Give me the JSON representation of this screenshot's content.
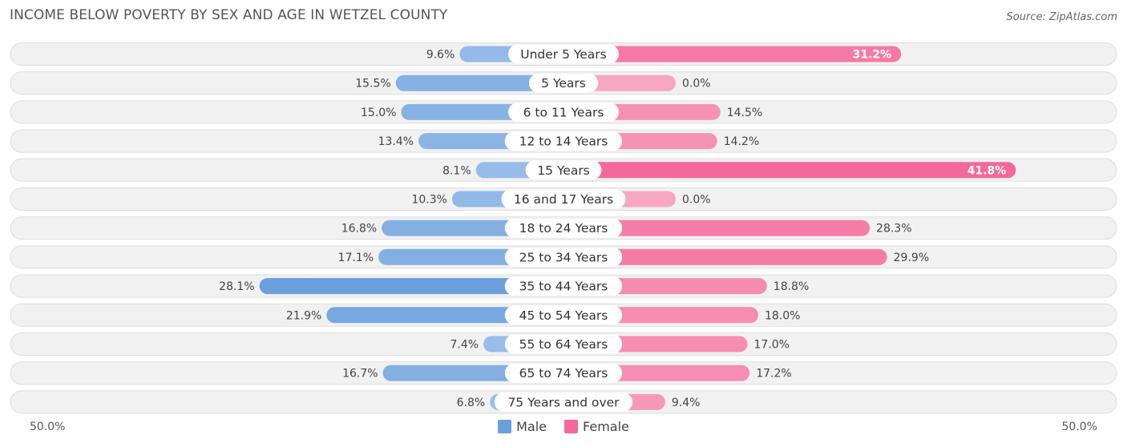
{
  "title": "INCOME BELOW POVERTY BY SEX AND AGE IN WETZEL COUNTY",
  "source": "Source: ZipAtlas.com",
  "colors": {
    "male_strong": "#6a9fdc",
    "male_light": "#a9c8ee",
    "female_strong": "#f4699a",
    "female_light": "#f7a7c2",
    "row_bg": "#f1f1f1",
    "row_border": "#dddddd"
  },
  "chart_data": {
    "type": "bar",
    "orientation": "horizontal-diverging",
    "title": "INCOME BELOW POVERTY BY SEX AND AGE IN WETZEL COUNTY",
    "axis_min_label": "50.0%",
    "axis_max_label": "50.0%",
    "xlim": [
      -50,
      50
    ],
    "categories": [
      "Under 5 Years",
      "5 Years",
      "6 to 11 Years",
      "12 to 14 Years",
      "15 Years",
      "16 and 17 Years",
      "18 to 24 Years",
      "25 to 34 Years",
      "35 to 44 Years",
      "45 to 54 Years",
      "55 to 64 Years",
      "65 to 74 Years",
      "75 Years and over"
    ],
    "series": [
      {
        "name": "Male",
        "values": [
          9.6,
          15.5,
          15.0,
          13.4,
          8.1,
          10.3,
          16.8,
          17.1,
          28.1,
          21.9,
          7.4,
          16.7,
          6.8
        ],
        "labels": [
          "9.6%",
          "15.5%",
          "15.0%",
          "13.4%",
          "8.1%",
          "10.3%",
          "16.8%",
          "17.1%",
          "28.1%",
          "21.9%",
          "7.4%",
          "16.7%",
          "6.8%"
        ]
      },
      {
        "name": "Female",
        "values": [
          31.2,
          0.0,
          14.5,
          14.2,
          41.8,
          0.0,
          28.3,
          29.9,
          18.8,
          18.0,
          17.0,
          17.2,
          9.4
        ],
        "labels": [
          "31.2%",
          "0.0%",
          "14.5%",
          "14.2%",
          "41.8%",
          "0.0%",
          "28.3%",
          "29.9%",
          "18.8%",
          "18.0%",
          "17.0%",
          "17.2%",
          "9.4%"
        ]
      }
    ],
    "legend": [
      "Male",
      "Female"
    ],
    "legend_position": "bottom-center"
  }
}
